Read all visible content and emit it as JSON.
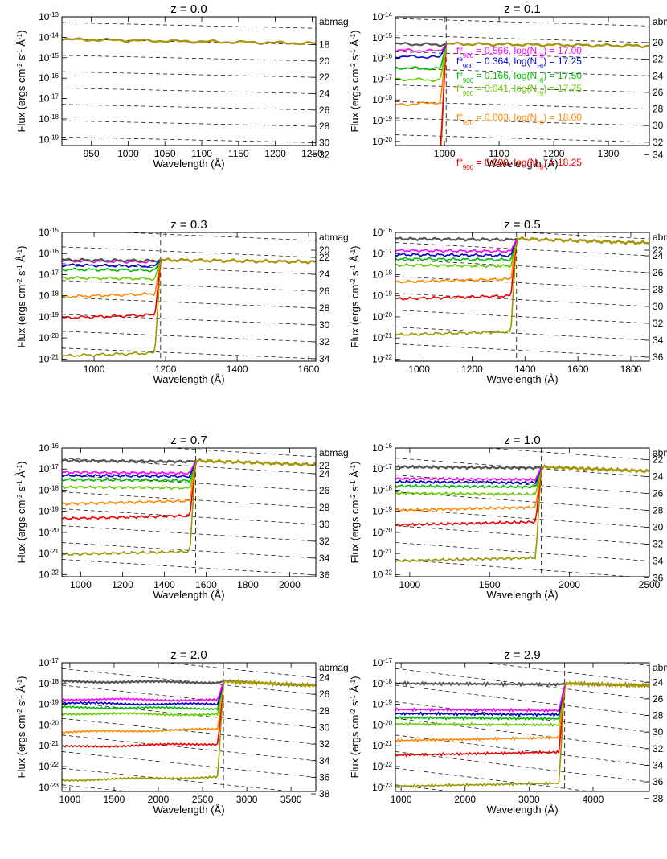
{
  "figure": {
    "ylabel_prefix": "Flux (ergs cm",
    "ylabel_exp1": "-2",
    "ylabel_mid": " s",
    "ylabel_exp2": "-1",
    "ylabel_mid2": " Å",
    "ylabel_exp3": "-1",
    "ylabel_suffix": ")",
    "xlabel": "Wavelength (Å)",
    "right_axis_label": "abmag",
    "series_colors": {
      "f0566": "#ff00ff",
      "f0364": "#0000cc",
      "f0166": "#00bb00",
      "f0041": "#66cc00",
      "f0003": "#ff8800",
      "f0000": "#ee0000",
      "lowest": "#999900",
      "intrinsic": "#555555",
      "observed": "#aa9900"
    }
  },
  "chart_data": [
    {
      "type": "line",
      "title": "z = 0.0",
      "z": 0.0,
      "xlim": [
        910,
        1255
      ],
      "ylim_log10": [
        -19.3,
        -13
      ],
      "x_ticks": [
        950,
        1000,
        1050,
        1100,
        1150,
        1200,
        1250
      ],
      "y_tick_exponents": [
        -19,
        -18,
        -17,
        -16,
        -15,
        -14,
        -13
      ],
      "abmag_ticks": [
        18,
        20,
        22,
        24,
        26,
        28,
        30,
        32
      ],
      "lyman_limit": 912,
      "continuum_log10_at_limit": -14.1,
      "continuum_log10_at_xmax": -14.3,
      "depths_log10": [
        0,
        0,
        0,
        0,
        0,
        0,
        0
      ],
      "lyman_limit_marker": false,
      "annotations": []
    },
    {
      "type": "line",
      "title": "z = 0.1",
      "z": 0.1,
      "xlim": [
        910,
        1375
      ],
      "ylim_log10": [
        -20.2,
        -14
      ],
      "x_ticks": [
        1000,
        1100,
        1200,
        1300
      ],
      "y_tick_exponents": [
        -20,
        -19,
        -18,
        -17,
        -16,
        -15,
        -14
      ],
      "abmag_ticks": [
        20,
        22,
        24,
        26,
        28,
        30,
        32,
        34
      ],
      "lyman_limit": 1003,
      "continuum_log10_at_limit": -15.3,
      "continuum_log10_at_xmax": -15.4,
      "depths_log10": [
        0.35,
        0.65,
        1.2,
        1.75,
        2.8,
        5.0,
        5.5
      ],
      "lyman_limit_marker": true,
      "annotations": [
        {
          "f900": "0.566",
          "logNHI": "17.00",
          "series": "f0566"
        },
        {
          "f900": "0.364",
          "logNHI": "17.25",
          "series": "f0364"
        },
        {
          "f900": "0.166",
          "logNHI": "17.50",
          "series": "f0166"
        },
        {
          "f900": "0.041",
          "logNHI": "17.75",
          "series": "f0041"
        },
        {
          "f900": "0.003",
          "logNHI": "18.00",
          "series": "f0003"
        },
        {
          "f900": "0.000",
          "logNHI": "18.25",
          "series": "f0000"
        }
      ]
    },
    {
      "type": "line",
      "title": "z = 0.3",
      "z": 0.3,
      "xlim": [
        910,
        1620
      ],
      "ylim_log10": [
        -21.1,
        -15
      ],
      "x_ticks": [
        1000,
        1200,
        1400,
        1600
      ],
      "y_tick_exponents": [
        -21,
        -20,
        -19,
        -18,
        -17,
        -16,
        -15
      ],
      "abmag_ticks": [
        20,
        22,
        24,
        26,
        28,
        30,
        32,
        34
      ],
      "lyman_limit": 1186,
      "continuum_log10_at_limit": -16.3,
      "continuum_log10_at_xmax": -16.4,
      "depths_log10": [
        0.1,
        0.3,
        0.5,
        0.9,
        1.6,
        2.6,
        4.4
      ],
      "lyman_limit_marker": true,
      "annotations": []
    },
    {
      "type": "line",
      "title": "z = 0.5",
      "z": 0.5,
      "xlim": [
        910,
        1870
      ],
      "ylim_log10": [
        -22.1,
        -16
      ],
      "x_ticks": [
        1000,
        1200,
        1400,
        1600,
        1800
      ],
      "y_tick_exponents": [
        -22,
        -21,
        -20,
        -19,
        -18,
        -17,
        -16
      ],
      "abmag_ticks": [
        22,
        24,
        26,
        28,
        30,
        32,
        34,
        36
      ],
      "lyman_limit": 1368,
      "continuum_log10_at_limit": -16.3,
      "continuum_log10_at_xmax": -16.5,
      "depths_log10": [
        0.6,
        0.8,
        1.0,
        1.3,
        1.9,
        2.7,
        4.4
      ],
      "lyman_limit_marker": true,
      "annotations": []
    },
    {
      "type": "line",
      "title": "z = 0.7",
      "z": 0.7,
      "xlim": [
        910,
        2125
      ],
      "ylim_log10": [
        -22.1,
        -16
      ],
      "x_ticks": [
        1000,
        1200,
        1400,
        1600,
        1800,
        2000
      ],
      "y_tick_exponents": [
        -22,
        -21,
        -20,
        -19,
        -18,
        -17,
        -16
      ],
      "abmag_ticks": [
        22,
        24,
        26,
        28,
        30,
        32,
        34,
        36
      ],
      "lyman_limit": 1550,
      "continuum_log10_at_limit": -16.6,
      "continuum_log10_at_xmax": -16.8,
      "depths_log10": [
        0.6,
        0.75,
        0.95,
        1.3,
        1.9,
        2.6,
        4.3
      ],
      "lyman_limit_marker": true,
      "annotations": []
    },
    {
      "type": "line",
      "title": "z = 1.0",
      "z": 1.0,
      "xlim": [
        910,
        2500
      ],
      "ylim_log10": [
        -22.1,
        -16
      ],
      "x_ticks": [
        1000,
        1500,
        2000,
        2500
      ],
      "y_tick_exponents": [
        -22,
        -21,
        -20,
        -19,
        -18,
        -17,
        -16
      ],
      "abmag_ticks": [
        22,
        24,
        26,
        28,
        30,
        32,
        34,
        36
      ],
      "lyman_limit": 1824,
      "continuum_log10_at_limit": -16.9,
      "continuum_log10_at_xmax": -17.1,
      "depths_log10": [
        0.6,
        0.75,
        0.95,
        1.3,
        1.9,
        2.6,
        4.3
      ],
      "lyman_limit_marker": true,
      "annotations": []
    },
    {
      "type": "line",
      "title": "z = 2.0",
      "z": 2.0,
      "xlim": [
        910,
        3780
      ],
      "ylim_log10": [
        -23.2,
        -17
      ],
      "x_ticks": [
        1000,
        1500,
        2000,
        2500,
        3000,
        3500
      ],
      "y_tick_exponents": [
        -23,
        -22,
        -21,
        -20,
        -19,
        -18,
        -17
      ],
      "abmag_ticks": [
        24,
        26,
        28,
        30,
        32,
        34,
        36,
        38
      ],
      "lyman_limit": 2736,
      "continuum_log10_at_limit": -17.9,
      "continuum_log10_at_xmax": -18.1,
      "depths_log10": [
        0.9,
        1.1,
        1.3,
        1.6,
        2.3,
        3.0,
        4.6
      ],
      "lyman_limit_marker": true,
      "annotations": []
    },
    {
      "type": "line",
      "title": "z = 2.9",
      "z": 2.9,
      "xlim": [
        910,
        4880
      ],
      "ylim_log10": [
        -23.2,
        -17
      ],
      "x_ticks": [
        1000,
        2000,
        3000,
        4000
      ],
      "y_tick_exponents": [
        -23,
        -22,
        -21,
        -20,
        -19,
        -18,
        -17
      ],
      "abmag_ticks": [
        24,
        26,
        28,
        30,
        32,
        34,
        36,
        38
      ],
      "lyman_limit": 3557,
      "continuum_log10_at_limit": -18.0,
      "continuum_log10_at_xmax": -18.1,
      "depths_log10": [
        1.3,
        1.5,
        1.7,
        2.0,
        2.6,
        3.3,
        4.8
      ],
      "lyman_limit_marker": true,
      "annotations": []
    }
  ]
}
